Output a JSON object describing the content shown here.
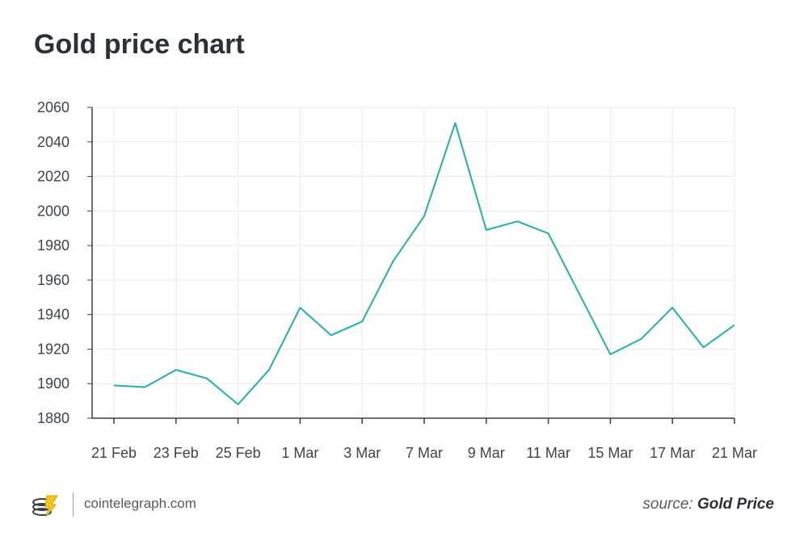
{
  "title": "Gold price chart",
  "footer": {
    "site": "cointelegraph.com",
    "source_prefix": "source:",
    "source_name": "Gold Price",
    "logo_icon": "cointelegraph-coins-icon"
  },
  "colors": {
    "line": "#20b2aa",
    "text": "#2b3139",
    "grid": "#ebebeb",
    "axis": "#3a3f44"
  },
  "chart_data": {
    "type": "line",
    "title": "Gold price chart",
    "xlabel": "",
    "ylabel": "",
    "ylim": [
      1880,
      2060
    ],
    "yticks": [
      1880,
      1900,
      1920,
      1940,
      1960,
      1980,
      2000,
      2020,
      2040,
      2060
    ],
    "xticks": [
      "21 Feb",
      "23 Feb",
      "25 Feb",
      "1 Mar",
      "3 Mar",
      "7 Mar",
      "9 Mar",
      "11 Mar",
      "15 Mar",
      "17 Mar",
      "21 Mar"
    ],
    "grid": true,
    "series": [
      {
        "values": [
          1899,
          1898,
          1908,
          1903,
          1888,
          1908,
          1944,
          1928,
          1936,
          1971,
          1997,
          2051,
          1989,
          1994,
          1987,
          1952,
          1917,
          1926,
          1944,
          1921,
          1934
        ]
      }
    ]
  }
}
